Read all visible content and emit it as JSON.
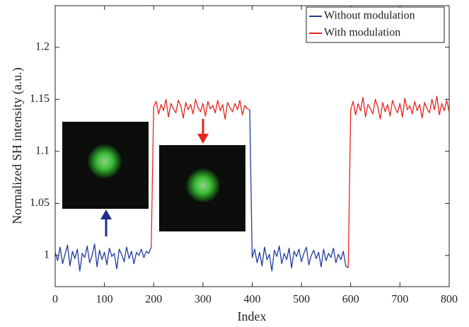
{
  "chart_data": {
    "type": "line",
    "xlabel": "Index",
    "ylabel": "Normalized SH intensity (a.u.)",
    "xlim": [
      0,
      800
    ],
    "ylim": [
      0.97,
      1.24
    ],
    "xticks": [
      0,
      100,
      200,
      300,
      400,
      500,
      600,
      700,
      800
    ],
    "yticks": [
      1,
      1.05,
      1.1,
      1.15,
      1.2
    ],
    "legend": "upper right",
    "x": [
      0,
      5,
      10,
      15,
      20,
      25,
      30,
      35,
      40,
      45,
      50,
      55,
      60,
      65,
      70,
      75,
      80,
      85,
      90,
      95,
      100,
      105,
      110,
      115,
      120,
      125,
      130,
      135,
      140,
      145,
      150,
      155,
      160,
      165,
      170,
      175,
      180,
      185,
      190,
      195,
      200,
      205,
      210,
      215,
      220,
      225,
      230,
      235,
      240,
      245,
      250,
      255,
      260,
      265,
      270,
      275,
      280,
      285,
      290,
      295,
      300,
      305,
      310,
      315,
      320,
      325,
      330,
      335,
      340,
      345,
      350,
      355,
      360,
      365,
      370,
      375,
      380,
      385,
      390,
      395,
      400,
      405,
      410,
      415,
      420,
      425,
      430,
      435,
      440,
      445,
      450,
      455,
      460,
      465,
      470,
      475,
      480,
      485,
      490,
      495,
      500,
      505,
      510,
      515,
      520,
      525,
      530,
      535,
      540,
      545,
      550,
      555,
      560,
      565,
      570,
      575,
      580,
      585,
      590,
      595,
      600,
      605,
      610,
      615,
      620,
      625,
      630,
      635,
      640,
      645,
      650,
      655,
      660,
      665,
      670,
      675,
      680,
      685,
      690,
      695,
      700,
      705,
      710,
      715,
      720,
      725,
      730,
      735,
      740,
      745,
      750,
      755,
      760,
      765,
      770,
      775,
      780,
      785,
      790,
      795,
      800
    ],
    "series": [
      {
        "name": "Without modulation",
        "color": "#1f3c9c",
        "values": [
          1.003,
          0.995,
          1.008,
          0.992,
          1.001,
          1.01,
          0.99,
          1.004,
          0.997,
          1.006,
          0.985,
          1.002,
          0.998,
          1.009,
          0.993,
          1.0,
          1.011,
          0.989,
          1.005,
          0.996,
          1.003,
          0.991,
          1.007,
          0.999,
          1.002,
          0.987,
          1.006,
          1.001,
          0.994,
          1.008,
          0.997,
          1.004,
          0.992,
          1.003,
          1.0,
          1.006,
          0.998,
          1.004,
          1.002,
          1.008,
          null,
          null,
          null,
          null,
          null,
          null,
          null,
          null,
          null,
          null,
          null,
          null,
          null,
          null,
          null,
          null,
          null,
          null,
          null,
          null,
          null,
          null,
          null,
          null,
          null,
          null,
          null,
          null,
          null,
          null,
          null,
          null,
          null,
          null,
          null,
          null,
          null,
          null,
          null,
          1.14,
          0.998,
          1.006,
          0.993,
          1.003,
          0.99,
          1.008,
          0.996,
          1.001,
          0.985,
          1.005,
          0.999,
          1.009,
          0.992,
          1.002,
          0.996,
          1.007,
          0.988,
          1.004,
          0.999,
          1.006,
          0.994,
          1.002,
          1.008,
          0.991,
          1.0,
          1.005,
          0.997,
          1.003,
          0.989,
          1.006,
          0.995,
          1.002,
          0.998,
          1.007,
          0.993,
          1.001,
          0.996,
          1.004,
          0.99,
          0.988,
          null,
          null,
          null,
          null,
          null,
          null,
          null,
          null,
          null,
          null,
          null,
          null,
          null,
          null,
          null,
          null,
          null,
          null,
          null,
          null,
          null,
          null,
          null,
          null,
          null,
          null,
          null,
          null,
          null,
          null,
          null,
          null,
          null,
          null,
          null,
          null,
          null,
          null,
          null,
          null,
          null
        ]
      },
      {
        "name": "With modulation",
        "color": "#e8231f",
        "values": [
          null,
          null,
          null,
          null,
          null,
          null,
          null,
          null,
          null,
          null,
          null,
          null,
          null,
          null,
          null,
          null,
          null,
          null,
          null,
          null,
          null,
          null,
          null,
          null,
          null,
          null,
          null,
          null,
          null,
          null,
          null,
          null,
          null,
          null,
          null,
          null,
          null,
          null,
          null,
          1.008,
          1.143,
          1.148,
          1.136,
          1.145,
          1.139,
          1.15,
          1.133,
          1.146,
          1.141,
          1.137,
          1.149,
          1.144,
          1.132,
          1.147,
          1.14,
          1.145,
          1.136,
          1.15,
          1.142,
          1.138,
          1.146,
          1.134,
          1.148,
          1.141,
          1.144,
          1.137,
          1.149,
          1.139,
          1.145,
          1.131,
          1.147,
          1.142,
          1.138,
          1.146,
          1.14,
          1.149,
          1.135,
          1.144,
          1.141,
          1.14,
          null,
          null,
          null,
          null,
          null,
          null,
          null,
          null,
          null,
          null,
          null,
          null,
          null,
          null,
          null,
          null,
          null,
          null,
          null,
          null,
          null,
          null,
          null,
          null,
          null,
          null,
          null,
          null,
          null,
          null,
          null,
          null,
          null,
          null,
          null,
          null,
          null,
          null,
          null,
          0.988,
          1.14,
          1.148,
          1.135,
          1.146,
          1.139,
          1.152,
          1.133,
          1.145,
          1.141,
          1.136,
          1.15,
          1.143,
          1.131,
          1.147,
          1.138,
          1.145,
          1.134,
          1.149,
          1.142,
          1.137,
          1.146,
          1.133,
          1.151,
          1.14,
          1.144,
          1.136,
          1.148,
          1.139,
          1.145,
          1.132,
          1.147,
          1.141,
          1.137,
          1.15,
          1.14,
          1.153,
          1.135,
          1.146,
          1.139,
          1.149,
          1.138
        ]
      }
    ]
  }
}
